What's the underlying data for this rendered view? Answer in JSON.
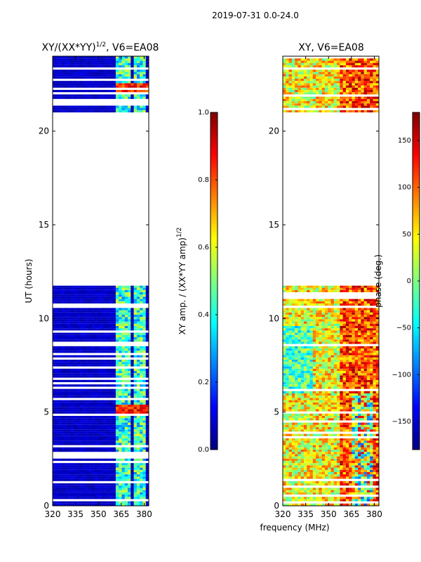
{
  "suptitle": "2019-07-31 0.0-24.0",
  "colors": {
    "jet": [
      "#00007f",
      "#0000ff",
      "#007fff",
      "#00ffff",
      "#7fff7f",
      "#ffff00",
      "#ff7f00",
      "#ff0000",
      "#7f0000"
    ],
    "background_low": "#00007f",
    "axis": "#000000"
  },
  "chart_data": [
    {
      "type": "heatmap",
      "title_prefix": "XY/(XX*YY)",
      "title_sup": "1/2",
      "title_suffix": ", V6=EA08",
      "xlabel": "",
      "ylabel": "UT (hours)",
      "xlim": [
        320,
        383
      ],
      "ylim": [
        0,
        24
      ],
      "xticks": [
        "320",
        "335",
        "350",
        "365",
        "380"
      ],
      "yticks": [
        "0",
        "5",
        "10",
        "15",
        "20"
      ],
      "data_ranges_hours": [
        [
          0,
          11.75
        ],
        [
          21.0,
          24.0
        ]
      ],
      "colorbar": {
        "label": "XY amp. / (XX*YY amp)",
        "label_sup": "1/2",
        "range": [
          0.0,
          1.0
        ],
        "ticks": [
          "0.0",
          "0.2",
          "0.4",
          "0.6",
          "0.8",
          "1.0"
        ]
      }
    },
    {
      "type": "heatmap",
      "title_prefix": "XY, V6=EA08",
      "xlabel": "frequency (MHz)",
      "ylabel": "",
      "xlim": [
        320,
        383
      ],
      "ylim": [
        0,
        24
      ],
      "xticks": [
        "320",
        "335",
        "350",
        "365",
        "380"
      ],
      "yticks": [
        "0",
        "5",
        "10",
        "15",
        "20"
      ],
      "data_ranges_hours": [
        [
          0,
          11.75
        ],
        [
          21.0,
          24.0
        ]
      ],
      "colorbar": {
        "label": "phase (deg.)",
        "range": [
          -180,
          180
        ],
        "ticks": [
          "−150",
          "−100",
          "−50",
          "0",
          "50",
          "100",
          "150"
        ]
      }
    }
  ]
}
